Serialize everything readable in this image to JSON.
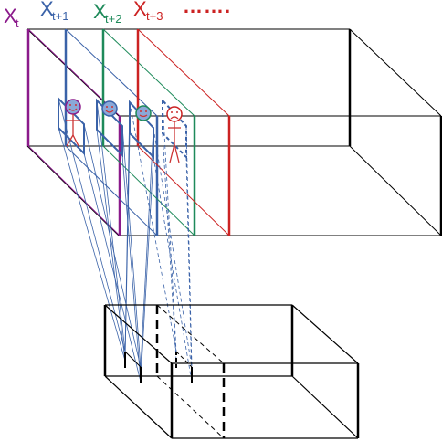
{
  "labels": {
    "x_t": {
      "base": "X",
      "sub": "t"
    },
    "x_t1": {
      "base": "X",
      "sub": "t+1"
    },
    "x_t2": {
      "base": "X",
      "sub": "t+2"
    },
    "x_t3": {
      "base": "X",
      "sub": "t+3"
    },
    "ellipsis": "……."
  },
  "colors": {
    "t": "#8b1a8b",
    "t1": "#3a62a8",
    "t2": "#1e8a5a",
    "t3": "#cc2222",
    "box": "#000000",
    "face_fill": "#8aa8d8",
    "face_fill_sad": "#ffffff",
    "face_feature": "#cc3333"
  },
  "icons": [
    "smiley-face-icon",
    "stick-figure-icon",
    "sad-face-icon"
  ]
}
